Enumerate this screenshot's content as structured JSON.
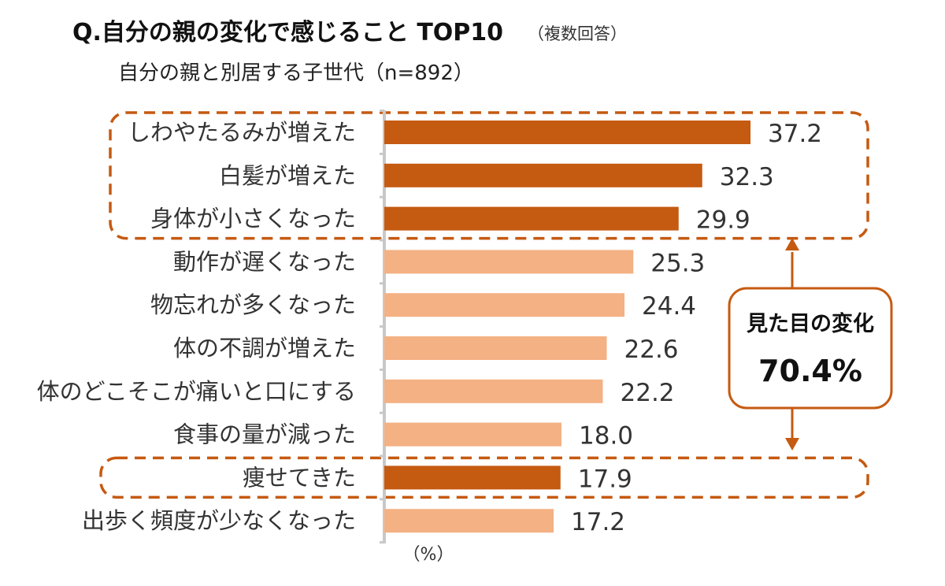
{
  "title": "Q.自分の親の変化で感じること TOP10",
  "title_note": "（複数回答）",
  "subtitle": "自分の親と別居する子世代（n=892）",
  "unit_label": "（%）",
  "callout": {
    "label": "見た目の変化",
    "value": "70.4%"
  },
  "colors": {
    "highlight": "#c55a11",
    "normal": "#f4b183",
    "callout_border": "#c55a11"
  },
  "chart_data": {
    "type": "bar",
    "orientation": "horizontal",
    "categories": [
      "しわやたるみが増えた",
      "白髪が増えた",
      "身体が小さくなった",
      "動作が遅くなった",
      "物忘れが多くなった",
      "体の不調が増えた",
      "体のどこそこが痛いと口にする",
      "食事の量が減った",
      "痩せてきた",
      "出歩く頻度が少なくなった"
    ],
    "values": [
      37.2,
      32.3,
      29.9,
      25.3,
      24.4,
      22.6,
      22.2,
      18.0,
      17.9,
      17.2
    ],
    "value_labels": [
      "37.2",
      "32.3",
      "29.9",
      "25.3",
      "24.4",
      "22.6",
      "22.2",
      "18.0",
      "17.9",
      "17.2"
    ],
    "highlighted": [
      true,
      true,
      true,
      false,
      false,
      false,
      false,
      false,
      true,
      false
    ],
    "xlim": [
      0,
      40
    ],
    "grid": false,
    "unit": "%",
    "groups": [
      {
        "from": 0,
        "to": 2,
        "style": "dashed-box"
      },
      {
        "from": 8,
        "to": 8,
        "style": "dashed-box"
      }
    ]
  }
}
